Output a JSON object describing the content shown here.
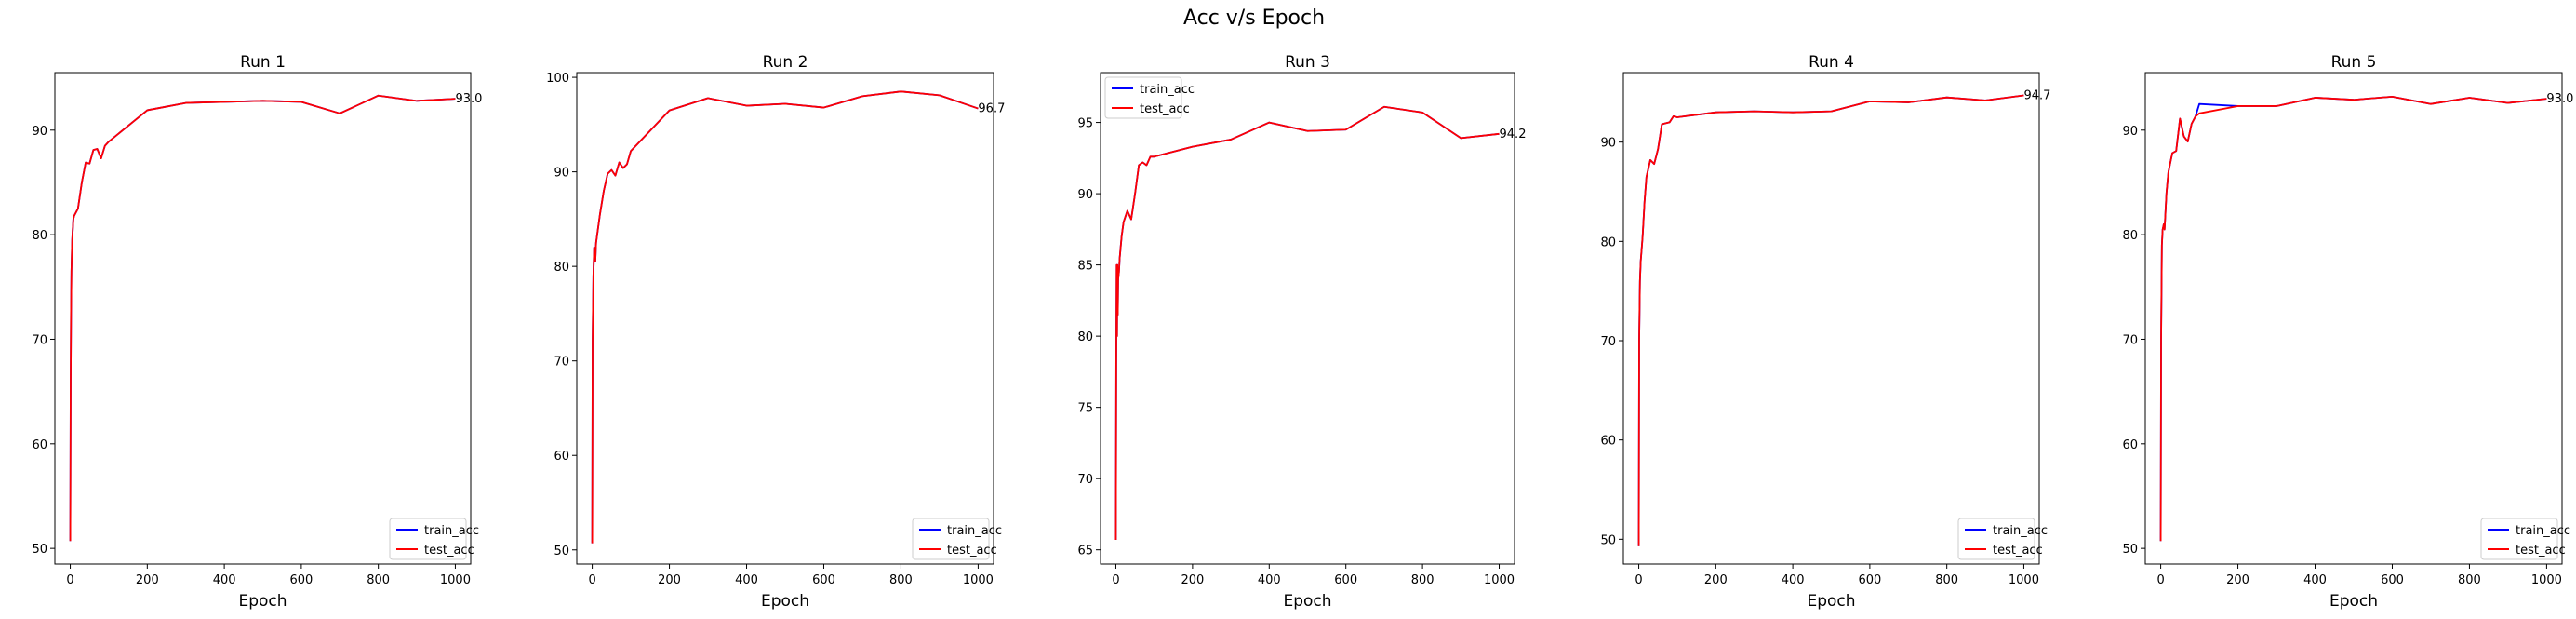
{
  "figure": {
    "suptitle": "Acc v/s Epoch"
  },
  "colors": {
    "train_acc": "#0000ff",
    "test_acc": "#ff0000",
    "axes": "#000000",
    "background": "#ffffff"
  },
  "chart_data": [
    {
      "type": "line",
      "title": "Run 1",
      "xlabel": "Epoch",
      "ylabel": "",
      "xlim": [
        -40,
        1040
      ],
      "ylim": [
        48.5,
        95.5
      ],
      "xticks": [
        0,
        200,
        400,
        600,
        800,
        1000
      ],
      "yticks": [
        50,
        60,
        70,
        80,
        90
      ],
      "legend_position": "lower-right",
      "end_label": "93.0",
      "x": [
        0,
        1,
        2,
        3,
        5,
        8,
        10,
        20,
        30,
        40,
        50,
        60,
        70,
        80,
        90,
        100,
        200,
        300,
        400,
        500,
        600,
        700,
        800,
        900,
        1000
      ],
      "series": [
        {
          "name": "train_acc",
          "values": [
            50.7,
            66.0,
            72.5,
            76.5,
            79.5,
            81.5,
            81.8,
            82.5,
            85.0,
            86.9,
            86.8,
            88.1,
            88.2,
            87.3,
            88.5,
            88.9,
            91.9,
            92.6,
            92.7,
            92.8,
            92.7,
            91.6,
            93.3,
            92.8,
            93.0
          ]
        },
        {
          "name": "test_acc",
          "values": [
            50.7,
            66.0,
            72.5,
            76.5,
            79.5,
            81.5,
            81.8,
            82.5,
            85.0,
            86.9,
            86.8,
            88.1,
            88.2,
            87.3,
            88.5,
            88.9,
            91.9,
            92.6,
            92.7,
            92.8,
            92.7,
            91.6,
            93.3,
            92.8,
            93.0
          ]
        }
      ]
    },
    {
      "type": "line",
      "title": "Run 2",
      "xlabel": "Epoch",
      "ylabel": "",
      "xlim": [
        -40,
        1040
      ],
      "ylim": [
        48.5,
        100.5
      ],
      "xticks": [
        0,
        200,
        400,
        600,
        800,
        1000
      ],
      "yticks": [
        50,
        60,
        70,
        80,
        90,
        100
      ],
      "legend_position": "lower-right",
      "end_label": "96.7",
      "x": [
        0,
        1,
        3,
        5,
        8,
        10,
        15,
        20,
        30,
        40,
        50,
        60,
        70,
        80,
        90,
        100,
        200,
        300,
        400,
        500,
        600,
        700,
        800,
        900,
        1000
      ],
      "series": [
        {
          "name": "train_acc",
          "values": [
            50.7,
            72.0,
            79.0,
            82.0,
            80.5,
            82.5,
            84.0,
            85.5,
            88.0,
            89.8,
            90.2,
            89.6,
            91.0,
            90.4,
            90.8,
            92.2,
            96.5,
            97.8,
            97.0,
            97.2,
            96.8,
            98.0,
            98.5,
            98.1,
            96.7
          ]
        },
        {
          "name": "test_acc",
          "values": [
            50.7,
            72.0,
            79.0,
            82.0,
            80.5,
            82.5,
            84.0,
            85.5,
            88.0,
            89.8,
            90.2,
            89.6,
            91.0,
            90.4,
            90.8,
            92.2,
            96.5,
            97.8,
            97.0,
            97.2,
            96.8,
            98.0,
            98.5,
            98.1,
            96.7
          ]
        }
      ]
    },
    {
      "type": "line",
      "title": "Run 3",
      "xlabel": "Epoch",
      "ylabel": "",
      "xlim": [
        -40,
        1040
      ],
      "ylim": [
        64.0,
        98.5
      ],
      "xticks": [
        0,
        200,
        400,
        600,
        800,
        1000
      ],
      "yticks": [
        65,
        70,
        75,
        80,
        85,
        90,
        95
      ],
      "legend_position": "upper-left",
      "end_label": "94.2",
      "x": [
        0,
        1,
        2,
        3,
        4,
        5,
        6,
        8,
        10,
        15,
        20,
        30,
        40,
        50,
        60,
        70,
        80,
        90,
        100,
        200,
        300,
        400,
        500,
        600,
        700,
        800,
        900,
        1000
      ],
      "series": [
        {
          "name": "train_acc",
          "values": [
            65.7,
            78.0,
            85.0,
            80.0,
            85.0,
            81.5,
            84.0,
            84.5,
            85.5,
            87.0,
            88.0,
            88.8,
            88.2,
            90.0,
            92.0,
            92.2,
            92.0,
            92.6,
            92.6,
            93.3,
            93.8,
            95.0,
            94.4,
            94.5,
            96.1,
            95.7,
            93.9,
            94.2
          ]
        },
        {
          "name": "test_acc",
          "values": [
            65.7,
            78.0,
            85.0,
            80.0,
            85.0,
            81.5,
            84.0,
            84.5,
            85.5,
            87.0,
            88.0,
            88.8,
            88.2,
            90.0,
            92.0,
            92.2,
            92.0,
            92.6,
            92.6,
            93.3,
            93.8,
            95.0,
            94.4,
            94.5,
            96.1,
            95.7,
            93.9,
            94.2
          ]
        }
      ]
    },
    {
      "type": "line",
      "title": "Run 4",
      "xlabel": "Epoch",
      "ylabel": "",
      "xlim": [
        -40,
        1040
      ],
      "ylim": [
        47.5,
        97.0
      ],
      "xticks": [
        0,
        200,
        400,
        600,
        800,
        1000
      ],
      "yticks": [
        50,
        60,
        70,
        80,
        90
      ],
      "legend_position": "lower-right",
      "end_label": "94.7",
      "x": [
        0,
        1,
        3,
        5,
        8,
        10,
        15,
        20,
        30,
        40,
        50,
        60,
        70,
        80,
        90,
        100,
        200,
        300,
        400,
        500,
        600,
        700,
        800,
        900,
        1000
      ],
      "series": [
        {
          "name": "train_acc",
          "values": [
            49.3,
            70.0,
            76.0,
            78.0,
            79.5,
            80.5,
            84.0,
            86.5,
            88.2,
            87.8,
            89.3,
            91.8,
            91.9,
            92.0,
            92.6,
            92.5,
            93.0,
            93.1,
            93.0,
            93.1,
            94.1,
            94.0,
            94.5,
            94.2,
            94.7
          ]
        },
        {
          "name": "test_acc",
          "values": [
            49.3,
            70.0,
            76.0,
            78.0,
            79.5,
            80.5,
            84.0,
            86.5,
            88.2,
            87.8,
            89.3,
            91.8,
            91.9,
            92.0,
            92.6,
            92.5,
            93.0,
            93.1,
            93.0,
            93.1,
            94.1,
            94.0,
            94.5,
            94.2,
            94.7
          ]
        }
      ]
    },
    {
      "type": "line",
      "title": "Run 5",
      "xlabel": "Epoch",
      "ylabel": "",
      "xlim": [
        -40,
        1040
      ],
      "ylim": [
        48.5,
        95.5
      ],
      "xticks": [
        0,
        200,
        400,
        600,
        800,
        1000
      ],
      "yticks": [
        50,
        60,
        70,
        80,
        90
      ],
      "legend_position": "lower-right",
      "end_label": "93.0",
      "x": [
        0,
        1,
        3,
        5,
        8,
        10,
        15,
        20,
        30,
        40,
        50,
        60,
        70,
        80,
        90,
        100,
        200,
        300,
        400,
        500,
        600,
        700,
        800,
        900,
        1000
      ],
      "series": [
        {
          "name": "train_acc",
          "values": [
            50.7,
            70.0,
            79.0,
            80.5,
            81.0,
            80.5,
            84.0,
            86.0,
            87.8,
            88.0,
            91.1,
            89.4,
            88.9,
            90.6,
            91.3,
            92.5,
            92.3,
            92.3,
            93.1,
            92.9,
            93.2,
            92.5,
            93.1,
            92.6,
            93.0
          ]
        },
        {
          "name": "test_acc",
          "values": [
            50.7,
            70.0,
            79.0,
            80.5,
            81.0,
            80.5,
            84.0,
            86.0,
            87.8,
            88.0,
            91.1,
            89.4,
            88.9,
            90.6,
            91.3,
            91.6,
            92.3,
            92.3,
            93.1,
            92.9,
            93.2,
            92.5,
            93.1,
            92.6,
            93.0
          ]
        }
      ]
    }
  ]
}
